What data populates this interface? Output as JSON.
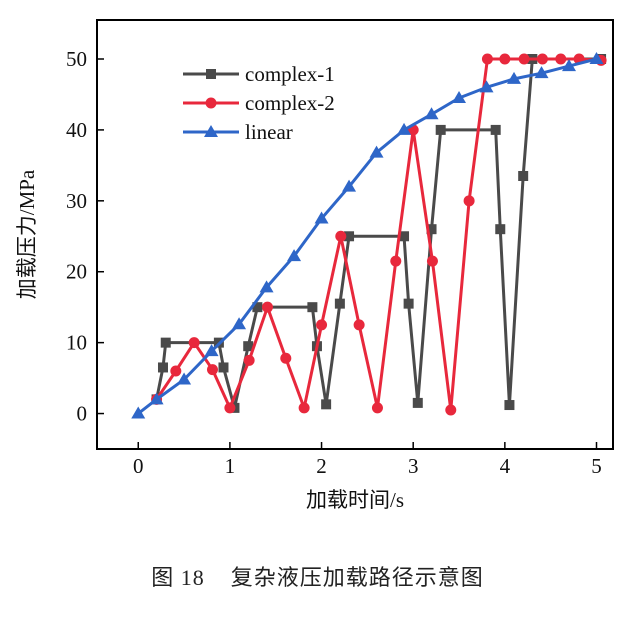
{
  "figure": {
    "caption_number": "图 18",
    "caption_text": "复杂液压加载路径示意图"
  },
  "chart_data": {
    "type": "line",
    "xlabel": "加载时间/s",
    "ylabel": "加载压力/MPa",
    "xlim": [
      -0.45,
      5.18
    ],
    "ylim": [
      -5,
      55.5
    ],
    "xticks": [
      0,
      1,
      2,
      3,
      4,
      5
    ],
    "yticks": [
      0,
      10,
      20,
      30,
      40,
      50
    ],
    "grid": false,
    "legend_position": "top-left",
    "series": [
      {
        "name": "complex-1",
        "color": "#4a4a4a",
        "marker": "square",
        "x": [
          0.2,
          0.27,
          0.3,
          0.88,
          0.93,
          1.05,
          1.2,
          1.3,
          1.9,
          1.95,
          2.05,
          2.2,
          2.3,
          2.9,
          2.95,
          3.05,
          3.2,
          3.3,
          3.9,
          3.95,
          4.05,
          4.2,
          4.3,
          5.05
        ],
        "y": [
          2,
          6.5,
          10,
          10,
          6.5,
          0.8,
          9.5,
          15,
          15,
          9.5,
          1.3,
          15.5,
          25,
          25,
          15.5,
          1.5,
          26,
          40,
          40,
          26,
          1.2,
          33.5,
          50,
          50
        ]
      },
      {
        "name": "complex-2",
        "color": "#e8283c",
        "marker": "circle",
        "x": [
          0.2,
          0.41,
          0.61,
          0.81,
          1.0,
          1.21,
          1.41,
          1.61,
          1.81,
          2.0,
          2.21,
          2.41,
          2.61,
          2.81,
          3.0,
          3.21,
          3.41,
          3.61,
          3.81,
          4.0,
          4.21,
          4.41,
          4.61,
          4.81,
          5.05
        ],
        "y": [
          2,
          6,
          10,
          6.2,
          0.8,
          7.5,
          15,
          7.8,
          0.8,
          12.5,
          25,
          12.5,
          0.8,
          21.5,
          40,
          21.5,
          0.5,
          30,
          50,
          50,
          50,
          50,
          50,
          50,
          49.8
        ]
      },
      {
        "name": "linear",
        "color": "#2e66c8",
        "marker": "triangle",
        "x": [
          0,
          0.2,
          0.5,
          0.8,
          1.1,
          1.4,
          1.7,
          2.0,
          2.3,
          2.6,
          2.9,
          3.2,
          3.5,
          3.8,
          4.1,
          4.4,
          4.7,
          5.0
        ],
        "y": [
          0,
          2,
          4.8,
          8.8,
          12.6,
          17.8,
          22.2,
          27.5,
          32,
          36.8,
          40,
          42.2,
          44.5,
          46,
          47.2,
          48,
          49,
          50
        ]
      }
    ]
  }
}
